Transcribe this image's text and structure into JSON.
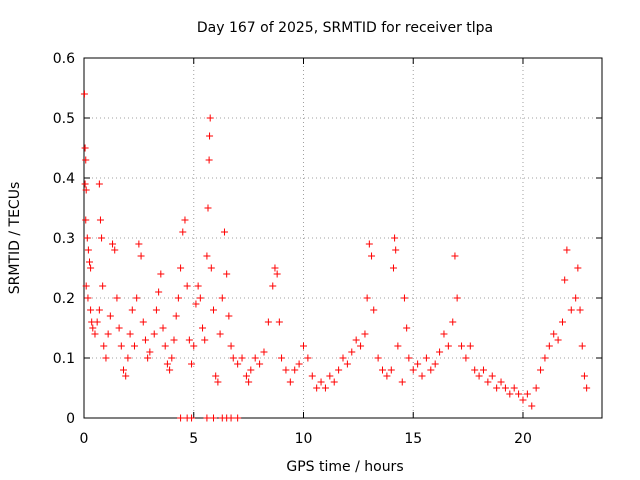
{
  "chart_data": {
    "type": "scatter",
    "title": "Day 167 of 2025, SRMTID for receiver tlpa",
    "xlabel": "GPS time / hours",
    "ylabel": "SRMTID / TECUs",
    "xlim": [
      0,
      23.6
    ],
    "ylim": [
      0,
      0.6
    ],
    "x_ticks": [
      0,
      5,
      10,
      15,
      20
    ],
    "x_tick_labels": [
      "0",
      "5",
      "10",
      "15",
      "20"
    ],
    "y_ticks": [
      0,
      0.1,
      0.2,
      0.3,
      0.4,
      0.5,
      0.6
    ],
    "y_tick_labels": [
      "0",
      "0.1",
      "0.2",
      "0.3",
      "0.4",
      "0.5",
      "0.6"
    ],
    "grid": true,
    "marker": "plus",
    "marker_color": "#ff0000",
    "series": [
      {
        "name": "SRMTID",
        "points": [
          [
            0.02,
            0.54
          ],
          [
            0.05,
            0.45
          ],
          [
            0.08,
            0.43
          ],
          [
            0.05,
            0.39
          ],
          [
            0.1,
            0.38
          ],
          [
            0.08,
            0.33
          ],
          [
            0.15,
            0.3
          ],
          [
            0.2,
            0.28
          ],
          [
            0.25,
            0.26
          ],
          [
            0.3,
            0.25
          ],
          [
            0.1,
            0.22
          ],
          [
            0.18,
            0.2
          ],
          [
            0.3,
            0.18
          ],
          [
            0.35,
            0.16
          ],
          [
            0.4,
            0.15
          ],
          [
            0.5,
            0.14
          ],
          [
            0.6,
            0.16
          ],
          [
            0.7,
            0.18
          ],
          [
            0.7,
            0.39
          ],
          [
            0.75,
            0.33
          ],
          [
            0.8,
            0.3
          ],
          [
            0.85,
            0.22
          ],
          [
            0.9,
            0.12
          ],
          [
            1.0,
            0.1
          ],
          [
            1.1,
            0.14
          ],
          [
            1.2,
            0.17
          ],
          [
            1.3,
            0.29
          ],
          [
            1.4,
            0.28
          ],
          [
            1.5,
            0.2
          ],
          [
            1.6,
            0.15
          ],
          [
            1.7,
            0.12
          ],
          [
            1.8,
            0.08
          ],
          [
            1.9,
            0.07
          ],
          [
            2.0,
            0.1
          ],
          [
            2.1,
            0.14
          ],
          [
            2.2,
            0.18
          ],
          [
            2.3,
            0.12
          ],
          [
            2.4,
            0.2
          ],
          [
            2.5,
            0.29
          ],
          [
            2.6,
            0.27
          ],
          [
            2.7,
            0.16
          ],
          [
            2.8,
            0.13
          ],
          [
            2.9,
            0.1
          ],
          [
            3.0,
            0.11
          ],
          [
            3.2,
            0.14
          ],
          [
            3.3,
            0.18
          ],
          [
            3.4,
            0.21
          ],
          [
            3.5,
            0.24
          ],
          [
            3.6,
            0.15
          ],
          [
            3.7,
            0.12
          ],
          [
            3.8,
            0.09
          ],
          [
            3.9,
            0.08
          ],
          [
            4.0,
            0.1
          ],
          [
            4.1,
            0.13
          ],
          [
            4.2,
            0.17
          ],
          [
            4.3,
            0.2
          ],
          [
            4.4,
            0.25
          ],
          [
            4.5,
            0.31
          ],
          [
            4.6,
            0.33
          ],
          [
            4.7,
            0.22
          ],
          [
            4.8,
            0.13
          ],
          [
            4.9,
            0.09
          ],
          [
            5.0,
            0.12
          ],
          [
            5.1,
            0.19
          ],
          [
            5.2,
            0.22
          ],
          [
            5.3,
            0.2
          ],
          [
            5.4,
            0.15
          ],
          [
            5.5,
            0.13
          ],
          [
            5.6,
            0.27
          ],
          [
            5.65,
            0.35
          ],
          [
            5.7,
            0.43
          ],
          [
            5.72,
            0.47
          ],
          [
            5.75,
            0.5
          ],
          [
            5.8,
            0.25
          ],
          [
            5.9,
            0.18
          ],
          [
            6.0,
            0.07
          ],
          [
            6.1,
            0.06
          ],
          [
            6.2,
            0.14
          ],
          [
            6.3,
            0.2
          ],
          [
            6.4,
            0.31
          ],
          [
            6.5,
            0.24
          ],
          [
            6.6,
            0.17
          ],
          [
            6.7,
            0.12
          ],
          [
            6.8,
            0.1
          ],
          [
            7.0,
            0.09
          ],
          [
            7.2,
            0.1
          ],
          [
            7.4,
            0.07
          ],
          [
            7.5,
            0.06
          ],
          [
            7.6,
            0.08
          ],
          [
            7.8,
            0.1
          ],
          [
            8.0,
            0.09
          ],
          [
            8.2,
            0.11
          ],
          [
            8.4,
            0.16
          ],
          [
            8.6,
            0.22
          ],
          [
            8.7,
            0.25
          ],
          [
            8.8,
            0.24
          ],
          [
            8.9,
            0.16
          ],
          [
            9.0,
            0.1
          ],
          [
            9.2,
            0.08
          ],
          [
            9.4,
            0.06
          ],
          [
            9.6,
            0.08
          ],
          [
            9.8,
            0.09
          ],
          [
            10.0,
            0.12
          ],
          [
            10.2,
            0.1
          ],
          [
            10.4,
            0.07
          ],
          [
            10.6,
            0.05
          ],
          [
            10.8,
            0.06
          ],
          [
            11.0,
            0.05
          ],
          [
            11.2,
            0.07
          ],
          [
            11.4,
            0.06
          ],
          [
            11.6,
            0.08
          ],
          [
            11.8,
            0.1
          ],
          [
            12.0,
            0.09
          ],
          [
            12.2,
            0.11
          ],
          [
            12.4,
            0.13
          ],
          [
            12.6,
            0.12
          ],
          [
            12.8,
            0.14
          ],
          [
            12.9,
            0.2
          ],
          [
            13.0,
            0.29
          ],
          [
            13.1,
            0.27
          ],
          [
            13.2,
            0.18
          ],
          [
            13.4,
            0.1
          ],
          [
            13.6,
            0.08
          ],
          [
            13.8,
            0.07
          ],
          [
            14.0,
            0.08
          ],
          [
            14.1,
            0.25
          ],
          [
            14.15,
            0.3
          ],
          [
            14.2,
            0.28
          ],
          [
            14.3,
            0.12
          ],
          [
            14.5,
            0.06
          ],
          [
            14.6,
            0.2
          ],
          [
            14.7,
            0.15
          ],
          [
            14.8,
            0.1
          ],
          [
            15.0,
            0.08
          ],
          [
            15.2,
            0.09
          ],
          [
            15.4,
            0.07
          ],
          [
            15.6,
            0.1
          ],
          [
            15.8,
            0.08
          ],
          [
            16.0,
            0.09
          ],
          [
            16.2,
            0.11
          ],
          [
            16.4,
            0.14
          ],
          [
            16.6,
            0.12
          ],
          [
            16.8,
            0.16
          ],
          [
            16.9,
            0.27
          ],
          [
            17.0,
            0.2
          ],
          [
            17.2,
            0.12
          ],
          [
            17.4,
            0.1
          ],
          [
            17.6,
            0.12
          ],
          [
            17.8,
            0.08
          ],
          [
            18.0,
            0.07
          ],
          [
            18.2,
            0.08
          ],
          [
            18.4,
            0.06
          ],
          [
            18.6,
            0.07
          ],
          [
            18.8,
            0.05
          ],
          [
            19.0,
            0.06
          ],
          [
            19.2,
            0.05
          ],
          [
            19.4,
            0.04
          ],
          [
            19.6,
            0.05
          ],
          [
            19.8,
            0.04
          ],
          [
            20.0,
            0.03
          ],
          [
            20.2,
            0.04
          ],
          [
            20.4,
            0.02
          ],
          [
            20.6,
            0.05
          ],
          [
            20.8,
            0.08
          ],
          [
            21.0,
            0.1
          ],
          [
            21.2,
            0.12
          ],
          [
            21.4,
            0.14
          ],
          [
            21.6,
            0.13
          ],
          [
            21.8,
            0.16
          ],
          [
            21.9,
            0.23
          ],
          [
            22.0,
            0.28
          ],
          [
            22.2,
            0.18
          ],
          [
            22.4,
            0.2
          ],
          [
            22.5,
            0.25
          ],
          [
            22.6,
            0.18
          ],
          [
            22.7,
            0.12
          ],
          [
            22.8,
            0.07
          ],
          [
            22.9,
            0.05
          ],
          [
            4.4,
            0.0
          ],
          [
            4.7,
            0.0
          ],
          [
            4.9,
            0.0
          ],
          [
            5.6,
            0.0
          ],
          [
            5.9,
            0.0
          ],
          [
            6.3,
            0.0
          ],
          [
            6.5,
            0.0
          ],
          [
            6.7,
            0.0
          ],
          [
            7.0,
            0.0
          ]
        ]
      }
    ]
  }
}
